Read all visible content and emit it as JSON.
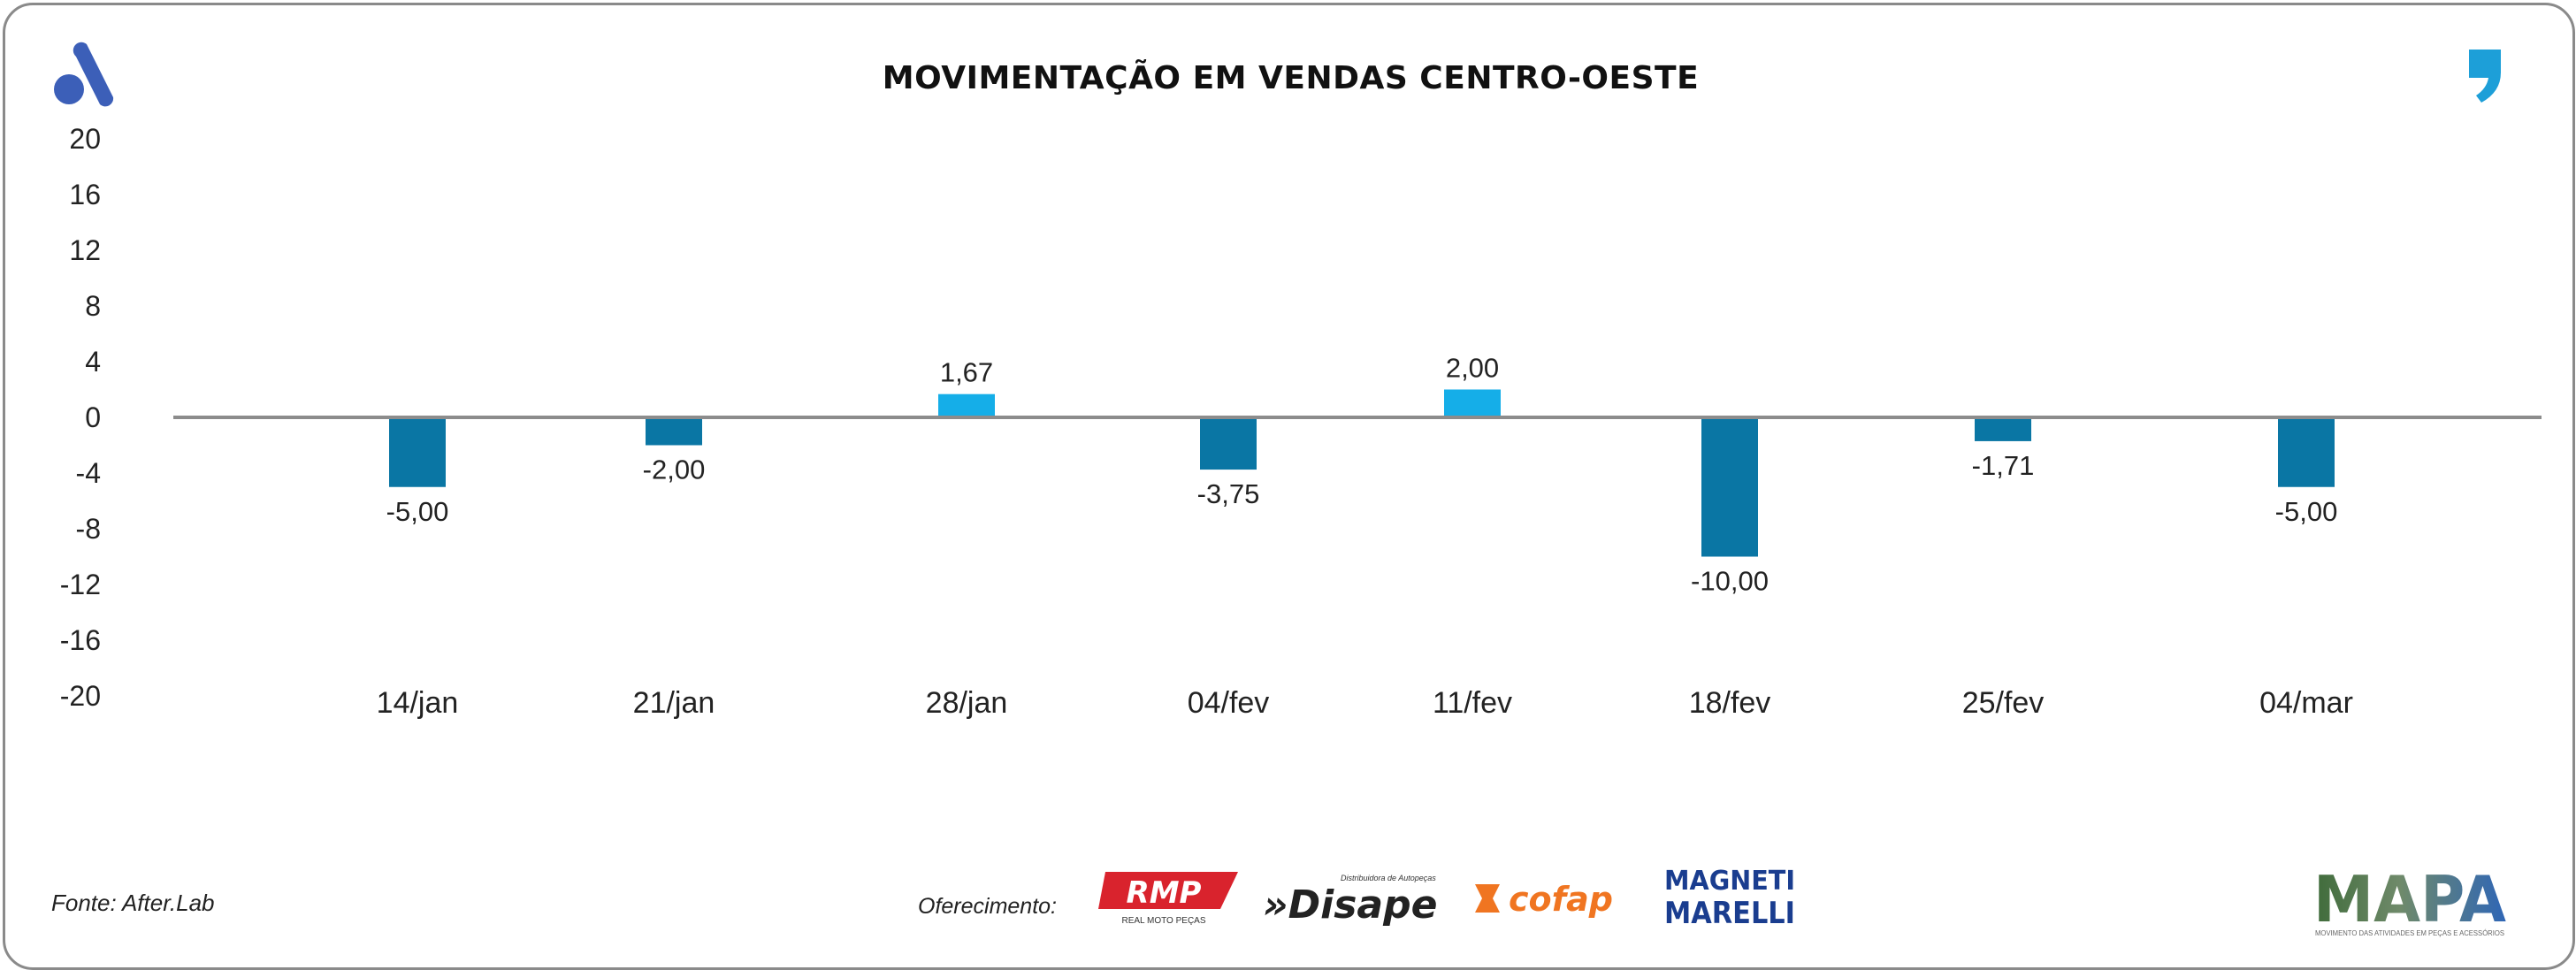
{
  "title": "MOVIMENTAÇÃO EM VENDAS CENTRO-OESTE",
  "source": "Fonte: After.Lab",
  "sponsor_label": "Oferecimento:",
  "sponsors": {
    "rmp": "RMP",
    "rmp_sub": "REAL MOTO PEÇAS",
    "disape": "»Disape",
    "disape_sub": "Distribuidora de Autopeças",
    "cofap": "cofap",
    "magneti_1": "MAGNETI",
    "magneti_2": "MARELLI"
  },
  "mapa": {
    "name": "MAPA",
    "tagline": "MOVIMENTO DAS ATIVIDADES EM PEÇAS E ACESSÓRIOS"
  },
  "colors": {
    "negative": "#0a76a4",
    "positive": "#15aee8",
    "zero_line": "#8c8c8c",
    "brand_blue": "#3c5fb8",
    "quote_blue": "#1d9fd8"
  },
  "chart_data": {
    "type": "bar",
    "title": "MOVIMENTAÇÃO EM VENDAS CENTRO-OESTE",
    "xlabel": "",
    "ylabel": "",
    "ylim": [
      -20,
      20
    ],
    "yticks": [
      20,
      16,
      12,
      8,
      4,
      0,
      -4,
      -8,
      -12,
      -16,
      -20
    ],
    "grid": false,
    "categories": [
      "14/jan",
      "21/jan",
      "28/jan",
      "04/fev",
      "11/fev",
      "18/fev",
      "25/fev",
      "04/mar"
    ],
    "values": [
      -5.0,
      -2.0,
      1.67,
      -3.75,
      2.0,
      -10.0,
      -1.71,
      -5.0
    ],
    "labels": [
      "-5,00",
      "-2,00",
      "1,67",
      "-3,75",
      "2,00",
      "-10,00",
      "-1,71",
      "-5,00"
    ]
  }
}
